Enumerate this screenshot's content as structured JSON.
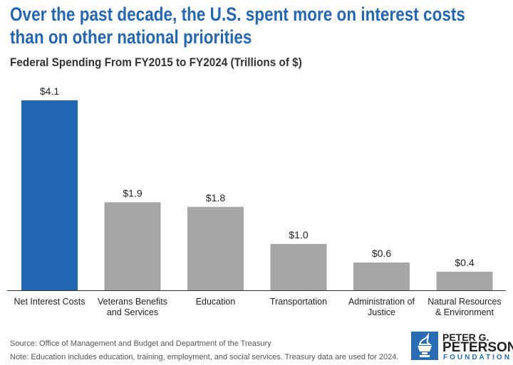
{
  "title": "Over the past decade, the U.S. spent more on interest costs than on other national priorities",
  "subtitle": "Federal Spending From FY2015 to FY2024 (Trillions of $)",
  "source": "Source: Office of Management and Budget and Department of the Treasury",
  "note": "Note: Education includes education, training, employment, and social services. Treasury data are used for 2024.",
  "logo": {
    "line1": "PETER G.",
    "line2": "PETERSON",
    "line3": "FOUNDATION"
  },
  "colors": {
    "highlight": "#2166b3",
    "default": "#a6a6a6",
    "title": "#2566b0"
  },
  "chart_data": {
    "type": "bar",
    "title": "Federal Spending From FY2015 to FY2024 (Trillions of $)",
    "categories": [
      [
        "Net Interest Costs"
      ],
      [
        "Veterans Benefits",
        "and Services"
      ],
      [
        "Education"
      ],
      [
        "Transportation"
      ],
      [
        "Administration of",
        "Justice"
      ],
      [
        "Natural Resources",
        "& Environment"
      ]
    ],
    "values": [
      4.1,
      1.9,
      1.8,
      1.0,
      0.6,
      0.4
    ],
    "labels": [
      "$4.1",
      "$1.9",
      "$1.8",
      "$1.0",
      "$0.6",
      "$0.4"
    ],
    "highlight_index": 0,
    "xlabel": "",
    "ylabel": "Trillions of $",
    "ylim": [
      0,
      4.1
    ],
    "grid": false
  }
}
